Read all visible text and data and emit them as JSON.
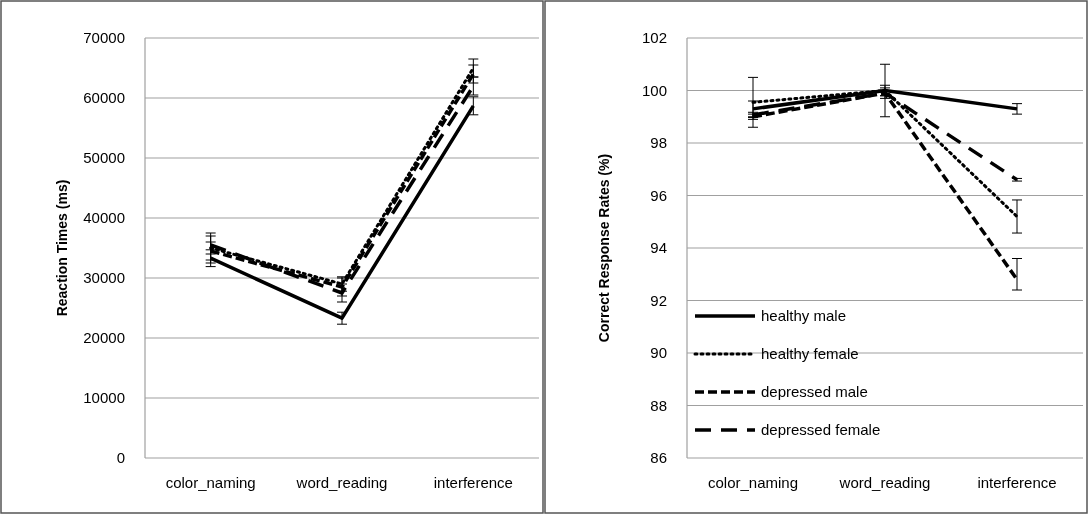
{
  "chart_data": [
    {
      "type": "line",
      "ylabel": "Reaction Times (ms)",
      "categories": [
        "color_naming",
        "word_reading",
        "interference"
      ],
      "ylim": [
        0,
        70000
      ],
      "yticks": [
        0,
        10000,
        20000,
        30000,
        40000,
        50000,
        60000,
        70000
      ],
      "grid": "y",
      "legend": false,
      "marker": "none",
      "series": [
        {
          "color": "#000000",
          "line_style": "solid",
          "values": [
            33300,
            23300,
            58700
          ],
          "errors": [
            1400,
            1000,
            1500
          ]
        },
        {
          "color": "#000000",
          "line_style": "dotted",
          "values": [
            35000,
            29000,
            65000
          ],
          "errors": [
            2500,
            1200,
            1500
          ]
        },
        {
          "color": "#000000",
          "line_style": "dashed",
          "values": [
            34500,
            28500,
            64000
          ],
          "errors": [
            1500,
            1500,
            1500
          ]
        },
        {
          "color": "#000000",
          "line_style": "dashed",
          "values": [
            35500,
            27500,
            62000
          ],
          "errors": [
            1500,
            1500,
            1500
          ]
        }
      ]
    },
    {
      "type": "line",
      "ylabel": "Correct Response Rates (%)",
      "categories": [
        "color_naming",
        "word_reading",
        "interference"
      ],
      "ylim": [
        86,
        102
      ],
      "yticks": [
        86,
        88,
        90,
        92,
        94,
        96,
        98,
        100,
        102
      ],
      "grid": "y",
      "legend": "bottom left",
      "marker": "none",
      "series": [
        {
          "name": "healthy male",
          "color": "#000000",
          "line_style": "solid",
          "values": [
            99.3,
            100,
            99.3
          ],
          "errors": [
            0.3,
            1.0,
            0.2
          ]
        },
        {
          "name": "healthy female",
          "color": "#000000",
          "line_style": "dotted",
          "values": [
            99.55,
            100,
            95.2
          ],
          "errors": [
            0.95,
            0.2,
            0.63
          ]
        },
        {
          "name": "depressed male",
          "color": "#000000",
          "line_style": "dashed",
          "values": [
            99.0,
            99.9,
            92.8
          ],
          "errors": [
            0.1,
            0.2,
            [
              92.4,
              93.6
            ]
          ]
        },
        {
          "name": "depressed female",
          "color": "#000000",
          "line_style": "dashed",
          "values": [
            99.07,
            99.9,
            96.6
          ],
          "errors": [
            0.1,
            0.1,
            0.05
          ]
        }
      ]
    }
  ]
}
